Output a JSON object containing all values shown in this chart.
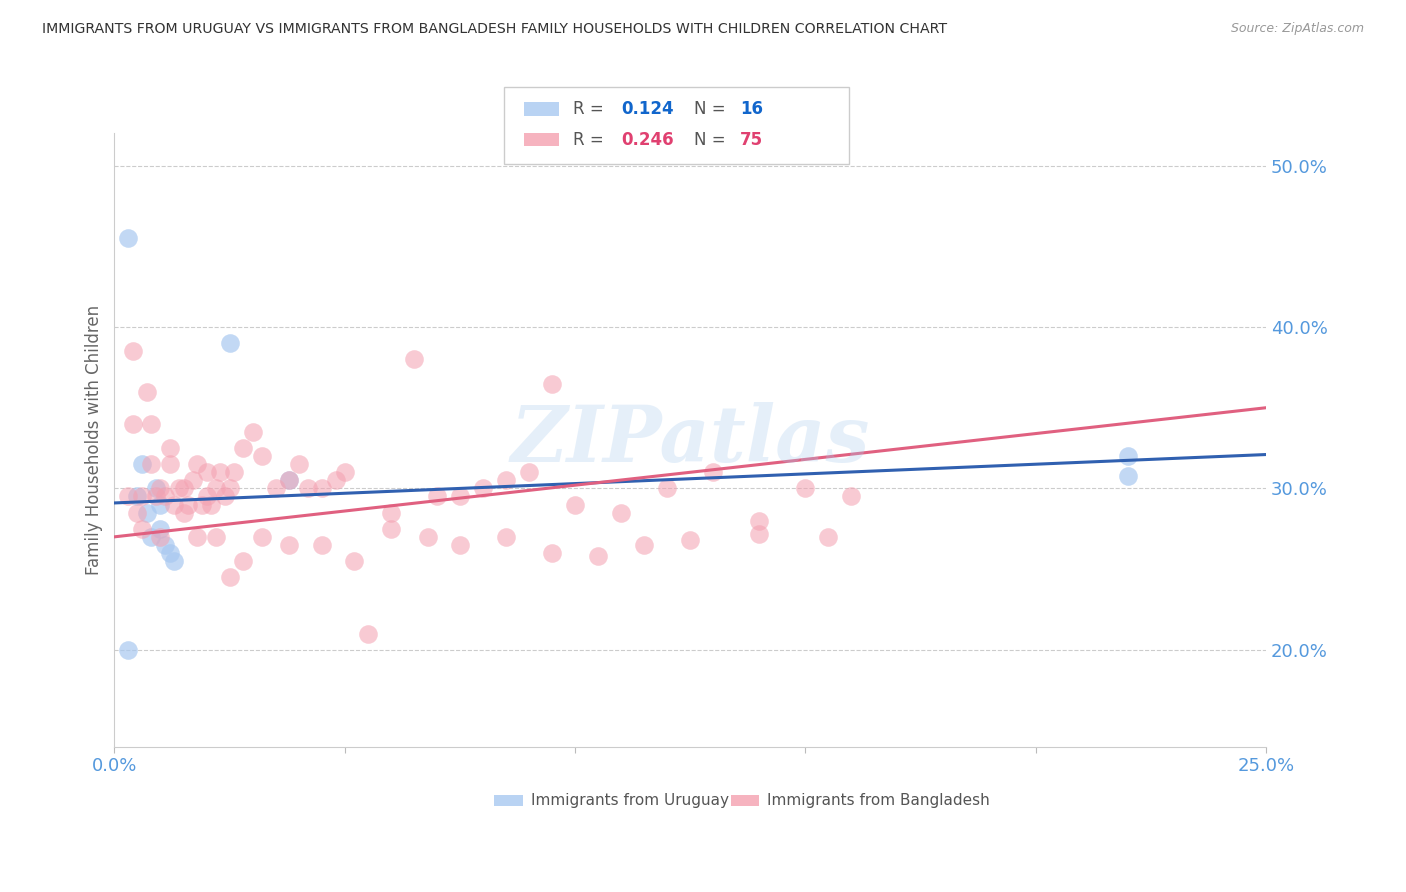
{
  "title": "IMMIGRANTS FROM URUGUAY VS IMMIGRANTS FROM BANGLADESH FAMILY HOUSEHOLDS WITH CHILDREN CORRELATION CHART",
  "source": "Source: ZipAtlas.com",
  "ylabel": "Family Households with Children",
  "legend_label1": "Immigrants from Uruguay",
  "legend_label2": "Immigrants from Bangladesh",
  "watermark": "ZIPatlas",
  "xlim": [
    0.0,
    0.25
  ],
  "ylim": [
    0.14,
    0.52
  ],
  "yticks": [
    0.2,
    0.3,
    0.4,
    0.5
  ],
  "ytick_labels": [
    "20.0%",
    "30.0%",
    "40.0%",
    "50.0%"
  ],
  "xticks": [
    0.0,
    0.05,
    0.1,
    0.15,
    0.2,
    0.25
  ],
  "color_uruguay": "#A8C8F0",
  "color_bangladesh": "#F4A0B0",
  "line_color_uruguay": "#3060B0",
  "line_color_bangladesh": "#E06080",
  "background_color": "#ffffff",
  "grid_color": "#cccccc",
  "axis_label_color": "#5599DD",
  "R1": 0.124,
  "N1": 16,
  "R2": 0.246,
  "N2": 75,
  "uruguay_x": [
    0.003,
    0.005,
    0.006,
    0.007,
    0.008,
    0.009,
    0.01,
    0.01,
    0.011,
    0.012,
    0.013,
    0.025,
    0.038,
    0.22,
    0.22,
    0.003
  ],
  "uruguay_y": [
    0.455,
    0.295,
    0.315,
    0.285,
    0.27,
    0.3,
    0.29,
    0.275,
    0.265,
    0.26,
    0.255,
    0.39,
    0.305,
    0.308,
    0.32,
    0.2
  ],
  "bangladesh_x": [
    0.003,
    0.004,
    0.005,
    0.006,
    0.007,
    0.008,
    0.009,
    0.01,
    0.011,
    0.012,
    0.013,
    0.014,
    0.015,
    0.016,
    0.017,
    0.018,
    0.019,
    0.02,
    0.021,
    0.022,
    0.023,
    0.024,
    0.025,
    0.026,
    0.028,
    0.03,
    0.032,
    0.035,
    0.038,
    0.04,
    0.042,
    0.045,
    0.048,
    0.05,
    0.055,
    0.06,
    0.065,
    0.07,
    0.075,
    0.08,
    0.085,
    0.09,
    0.095,
    0.1,
    0.11,
    0.12,
    0.13,
    0.14,
    0.15,
    0.16,
    0.004,
    0.006,
    0.008,
    0.01,
    0.012,
    0.015,
    0.018,
    0.02,
    0.022,
    0.025,
    0.028,
    0.032,
    0.038,
    0.045,
    0.052,
    0.06,
    0.068,
    0.075,
    0.085,
    0.095,
    0.105,
    0.115,
    0.125,
    0.14,
    0.155
  ],
  "bangladesh_y": [
    0.295,
    0.34,
    0.285,
    0.295,
    0.36,
    0.315,
    0.295,
    0.3,
    0.295,
    0.315,
    0.29,
    0.3,
    0.3,
    0.29,
    0.305,
    0.315,
    0.29,
    0.31,
    0.29,
    0.3,
    0.31,
    0.295,
    0.3,
    0.31,
    0.325,
    0.335,
    0.32,
    0.3,
    0.305,
    0.315,
    0.3,
    0.3,
    0.305,
    0.31,
    0.21,
    0.285,
    0.38,
    0.295,
    0.295,
    0.3,
    0.305,
    0.31,
    0.365,
    0.29,
    0.285,
    0.3,
    0.31,
    0.28,
    0.3,
    0.295,
    0.385,
    0.275,
    0.34,
    0.27,
    0.325,
    0.285,
    0.27,
    0.295,
    0.27,
    0.245,
    0.255,
    0.27,
    0.265,
    0.265,
    0.255,
    0.275,
    0.27,
    0.265,
    0.27,
    0.26,
    0.258,
    0.265,
    0.268,
    0.272,
    0.27
  ]
}
